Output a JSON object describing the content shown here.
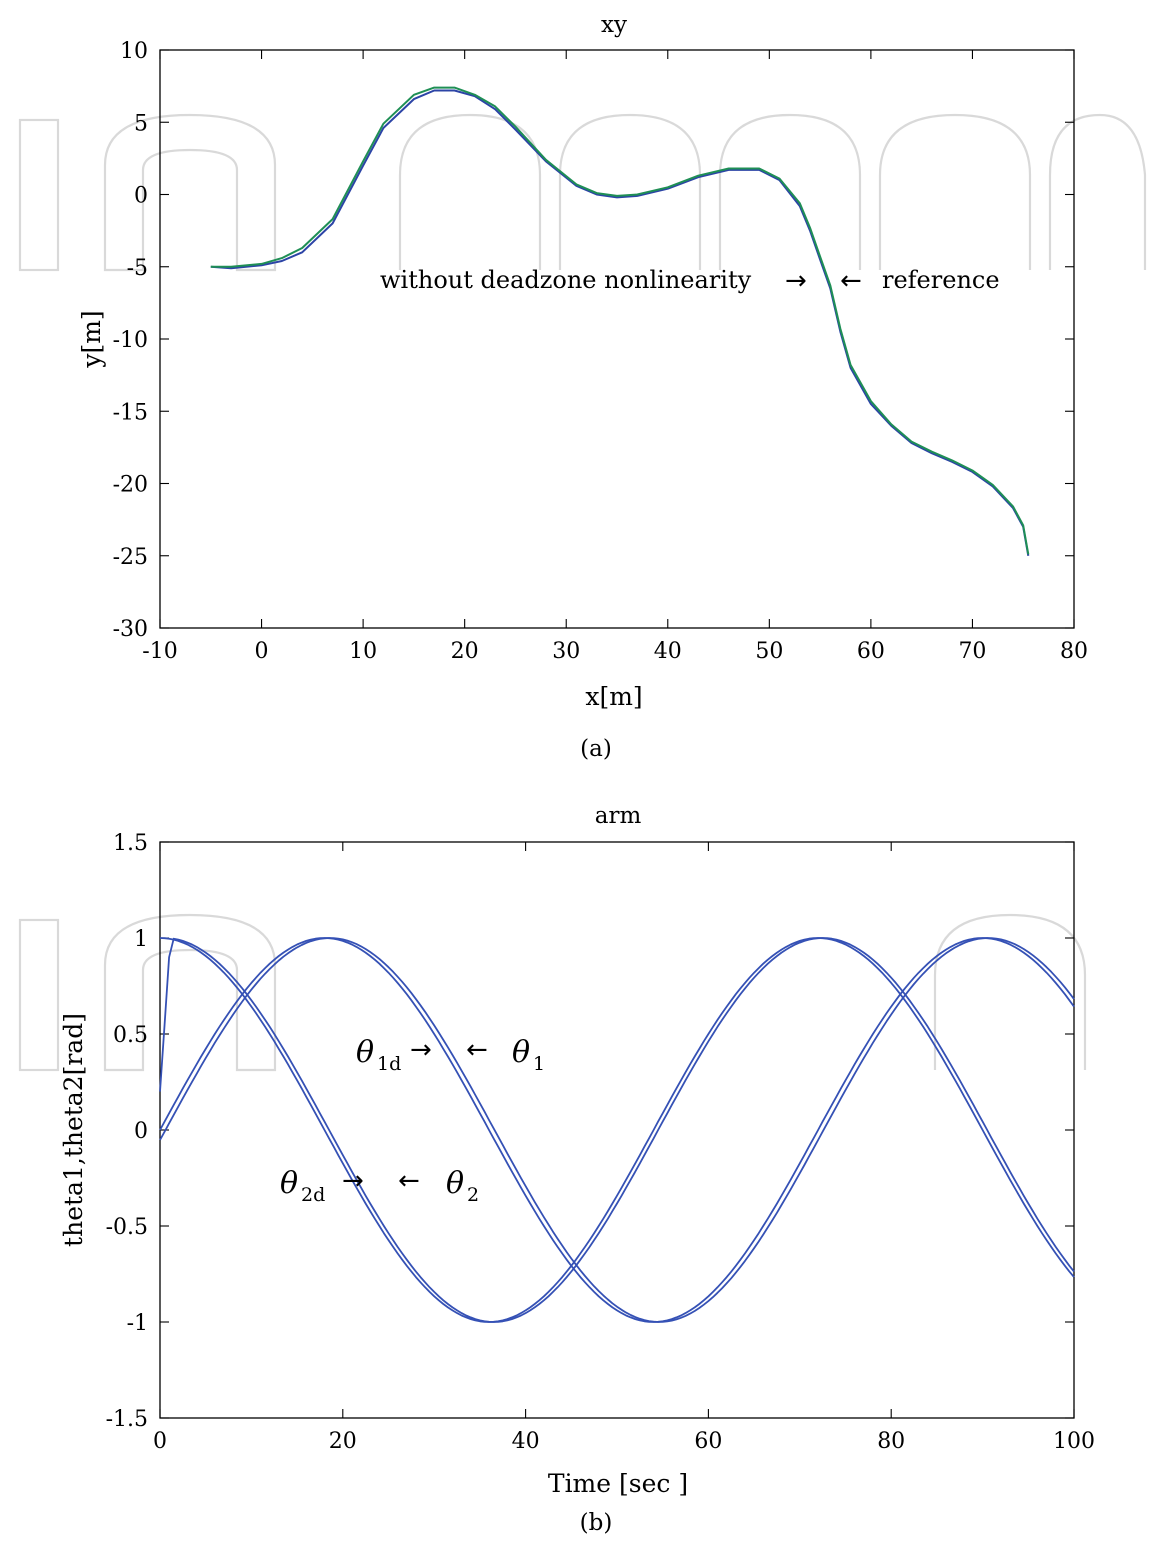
{
  "colors": {
    "reference": "#2c44a6",
    "tracked": "#1f8f55",
    "theta": "#3551b5",
    "watermark": "#d9d9d9"
  },
  "chart_data": [
    {
      "type": "line",
      "title": "xy",
      "xlabel": "x[m]",
      "ylabel": "y[m]",
      "xlim": [
        -10,
        80
      ],
      "ylim": [
        -30,
        10
      ],
      "xticks": [
        "-10",
        "0",
        "10",
        "20",
        "30",
        "40",
        "50",
        "60",
        "70",
        "80"
      ],
      "yticks": [
        "10",
        "5",
        "0",
        "-5",
        "-10",
        "-15",
        "-20",
        "-25",
        "-30"
      ],
      "grid": false,
      "caption": "(a)",
      "annotations": [
        {
          "text": "without deadzone nonlinearity",
          "arrow": "→"
        },
        {
          "text": "reference",
          "arrow": "←"
        }
      ],
      "series": [
        {
          "x": [
            -5,
            -3,
            0,
            2,
            4,
            7,
            10,
            12,
            15,
            17,
            19,
            21,
            23,
            25,
            28,
            31,
            33,
            35,
            37,
            40,
            43,
            46,
            49,
            51,
            53,
            54,
            55,
            56,
            57,
            58,
            60,
            62,
            64,
            66,
            68,
            70,
            72,
            74,
            75,
            75.5
          ],
          "y": [
            -5,
            -5.1,
            -4.9,
            -4.6,
            -4,
            -2,
            2,
            4.6,
            6.6,
            7.2,
            7.2,
            6.8,
            5.9,
            4.5,
            2.3,
            0.6,
            0,
            -0.2,
            -0.1,
            0.4,
            1.2,
            1.7,
            1.7,
            1,
            -0.8,
            -2.5,
            -4.5,
            -6.5,
            -9.5,
            -12,
            -14.5,
            -16,
            -17.2,
            -17.9,
            -18.5,
            -19.2,
            -20.2,
            -21.7,
            -23,
            -25
          ]
        },
        {
          "x": [
            -5,
            -3,
            0,
            2,
            4,
            7,
            10,
            12,
            15,
            17,
            19,
            21,
            23,
            25,
            28,
            31,
            33,
            35,
            37,
            40,
            43,
            46,
            49,
            51,
            53,
            54,
            55,
            56,
            57,
            58,
            60,
            62,
            64,
            66,
            68,
            70,
            72,
            74,
            75,
            75.5
          ],
          "y": [
            -5,
            -5,
            -4.8,
            -4.4,
            -3.7,
            -1.7,
            2.3,
            4.9,
            6.9,
            7.4,
            7.4,
            6.9,
            6.1,
            4.7,
            2.4,
            0.7,
            0.1,
            -0.1,
            0,
            0.5,
            1.3,
            1.8,
            1.8,
            1.1,
            -0.6,
            -2.3,
            -4.3,
            -6.3,
            -9.3,
            -11.8,
            -14.3,
            -15.9,
            -17.1,
            -17.8,
            -18.4,
            -19.1,
            -20.1,
            -21.6,
            -22.9,
            -24.9
          ]
        }
      ]
    },
    {
      "type": "line",
      "title": "arm",
      "xlabel": "Time [sec ]",
      "ylabel": "theta1,theta2[rad]",
      "xlim": [
        0,
        100
      ],
      "ylim": [
        -1.5,
        1.5
      ],
      "xticks": [
        "0",
        "20",
        "40",
        "60",
        "80",
        "100"
      ],
      "yticks": [
        "1.5",
        "1",
        "0.5",
        "0",
        "-0.5",
        "-1",
        "-1.5"
      ],
      "grid": false,
      "caption": "(b)",
      "annotations": [
        {
          "symbol": "θ",
          "subscript": "1d",
          "arrow": "→"
        },
        {
          "symbol": "θ",
          "subscript": "1",
          "arrow": "←"
        },
        {
          "symbol": "θ",
          "subscript": "2d",
          "arrow": "→"
        },
        {
          "symbol": "θ",
          "subscript": "2",
          "arrow": "←"
        }
      ],
      "series": [
        {
          "function": "sin",
          "amplitude": 1,
          "period": 72,
          "phase_shift": 0
        },
        {
          "function": "sin",
          "amplitude": 1,
          "period": 72,
          "phase_shift": 0.6
        },
        {
          "function": "cos",
          "amplitude": 1,
          "period": 72,
          "phase_shift": 0
        },
        {
          "function": "cos",
          "amplitude": 1,
          "period": 72,
          "phase_shift": 0.5
        }
      ]
    }
  ]
}
